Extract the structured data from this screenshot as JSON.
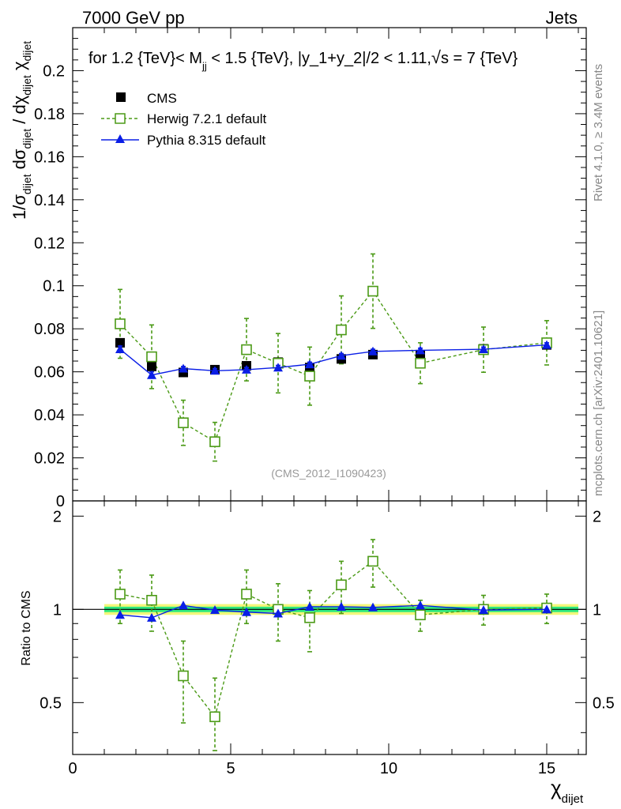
{
  "header": {
    "left": "7000 GeV pp",
    "right": "Jets",
    "title_prefix": "for 1.2 {TeV}< M",
    "title_sub": "jj",
    "title_suffix": " < 1.5 {TeV}, |y_1+y_2|/2 < 1.11,",
    "title_sqrt": "√",
    "title_end": "s = 7 {TeV}"
  },
  "side_labels": {
    "rivet": "Rivet 4.1.0, ≥ 3.4M events",
    "mcplots": "mcplots.cern.ch [arXiv:2401.10621]"
  },
  "watermark": "(CMS_2012_I1090423)",
  "axis": {
    "x_main": "χ",
    "x_sub": "dijet",
    "ratio_ylabel": "Ratio to CMS",
    "ylabel_parts": {
      "one_over": "1/σ",
      "dijet1": "dijet",
      "dsigma": "dσ",
      "dijet2": "dijet",
      "slash": " / dχ",
      "dijet3": "dijet",
      "chi": "χ",
      "dijet4": "dijet"
    }
  },
  "colors": {
    "cms": "#000000",
    "herwig": "#4b9a16",
    "pythia": "#0a1ee6",
    "band_inner": "#2ee87e",
    "band_outer": "#f2f77a"
  },
  "chart_data": {
    "type": "scatter",
    "xlim": [
      0,
      16.25
    ],
    "ylim": [
      0,
      0.22
    ],
    "ratio_ylim": [
      0.34,
      2.24
    ],
    "ratio_log": true,
    "x_ticks": [
      "0",
      "5",
      "10",
      "15"
    ],
    "y_ticks": [
      "0",
      "0.02",
      "0.04",
      "0.06",
      "0.08",
      "0.1",
      "0.12",
      "0.14",
      "0.16",
      "0.18",
      "0.2"
    ],
    "ratio_ticks": [
      "0.5",
      "1",
      "2"
    ],
    "x": [
      1.5,
      2.5,
      3.5,
      4.5,
      5.5,
      6.5,
      7.5,
      8.5,
      9.5,
      11.0,
      13.0,
      15.0
    ],
    "x_edges": [
      1,
      2,
      3,
      4,
      5,
      6,
      7,
      8,
      9,
      10,
      12,
      14,
      16
    ],
    "legend": [
      "CMS",
      "Herwig 7.2.1 default",
      "Pythia 8.315 default"
    ],
    "series": [
      {
        "name": "CMS",
        "marker": "square",
        "values": [
          0.0735,
          0.0625,
          0.0597,
          0.061,
          0.0628,
          0.0645,
          0.062,
          0.066,
          0.068,
          0.068,
          0.0707,
          0.0725
        ]
      },
      {
        "name": "Herwig 7.2.1 default",
        "marker": "open-square",
        "style": "dashed",
        "values": [
          0.0823,
          0.067,
          0.0363,
          0.0275,
          0.0703,
          0.064,
          0.058,
          0.0795,
          0.0975,
          0.064,
          0.0703,
          0.0735
        ],
        "errors": [
          0.016,
          0.0148,
          0.0105,
          0.009,
          0.0145,
          0.0138,
          0.0135,
          0.0158,
          0.0173,
          0.0095,
          0.0105,
          0.0103
        ]
      },
      {
        "name": "Pythia 8.315 default",
        "marker": "triangle",
        "values": [
          0.0705,
          0.0585,
          0.0615,
          0.0605,
          0.061,
          0.062,
          0.0635,
          0.0675,
          0.0695,
          0.07,
          0.0705,
          0.0725
        ],
        "errors": [
          0.0015,
          0.0015,
          0.001,
          0.001,
          0.001,
          0.001,
          0.001,
          0.001,
          0.001,
          0.001,
          0.001,
          0.001
        ]
      }
    ],
    "ratio_series": [
      {
        "name": "Herwig 7.2.1 default",
        "values": [
          1.12,
          1.07,
          0.61,
          0.45,
          1.12,
          1.0,
          0.94,
          1.2,
          1.43,
          0.96,
          1.0,
          1.01
        ],
        "errors": [
          0.22,
          0.22,
          0.18,
          0.15,
          0.22,
          0.21,
          0.21,
          0.23,
          0.25,
          0.11,
          0.11,
          0.11
        ]
      },
      {
        "name": "Pythia 8.315 default",
        "values": [
          0.96,
          0.94,
          1.03,
          0.995,
          0.98,
          0.97,
          1.02,
          1.02,
          1.015,
          1.03,
          0.995,
          1.0
        ],
        "errors": [
          0.02,
          0.02,
          0.01,
          0.01,
          0.01,
          0.01,
          0.01,
          0.01,
          0.01,
          0.01,
          0.01,
          0.01
        ]
      }
    ],
    "band_inner": 0.02,
    "band_outer": 0.04
  }
}
